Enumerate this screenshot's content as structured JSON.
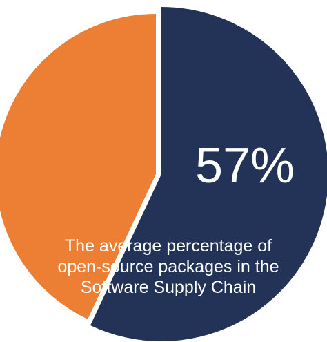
{
  "chart_data": {
    "type": "pie",
    "slices": [
      {
        "label": "57%",
        "value": 57,
        "color": "#233257"
      },
      {
        "label": "",
        "value": 43,
        "color": "#ec7f33"
      }
    ],
    "annotation": {
      "percentage_text": "57%",
      "caption_lines": [
        "The average percentage of",
        "open-source packages in the",
        "Software Supply Chain"
      ]
    }
  }
}
